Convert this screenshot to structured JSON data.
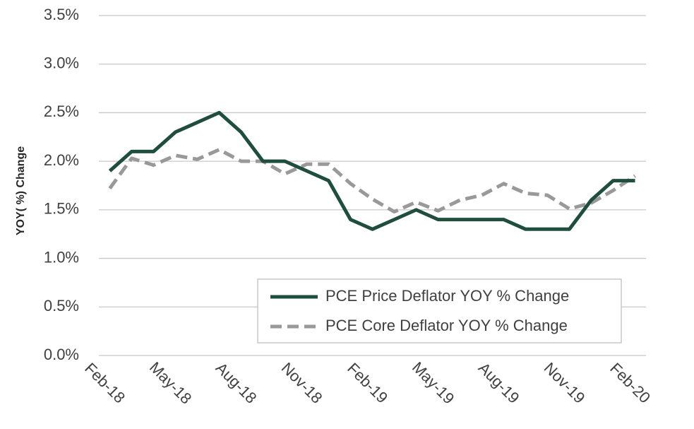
{
  "chart_data": {
    "type": "line",
    "y_label": "YOY( %) Change",
    "categories": [
      "Feb-18",
      null,
      null,
      "May-18",
      null,
      null,
      "Aug-18",
      null,
      null,
      "Nov-18",
      null,
      null,
      "Feb-19",
      null,
      null,
      "May-19",
      null,
      null,
      "Aug-19",
      null,
      null,
      "Nov-19",
      null,
      null,
      "Feb-20"
    ],
    "series": [
      {
        "name": "PCE Price Deflator YOY % Change",
        "color": "#1f4e3d",
        "dash": false,
        "values": [
          1.9,
          2.1,
          2.1,
          2.3,
          2.4,
          2.5,
          2.3,
          2.0,
          2.0,
          1.9,
          1.8,
          1.4,
          1.3,
          1.4,
          1.5,
          1.4,
          1.4,
          1.4,
          1.4,
          1.3,
          1.3,
          1.3,
          1.6,
          1.8,
          1.8
        ]
      },
      {
        "name": "PCE Core Deflator YOY % Change",
        "color": "#999999",
        "dash": true,
        "values": [
          1.72,
          2.03,
          1.96,
          2.06,
          2.02,
          2.12,
          2.0,
          2.0,
          1.87,
          1.97,
          1.97,
          1.77,
          1.61,
          1.48,
          1.58,
          1.49,
          1.6,
          1.65,
          1.77,
          1.67,
          1.65,
          1.51,
          1.57,
          1.7,
          1.85
        ]
      }
    ],
    "ylim": [
      0,
      3.5
    ],
    "yticks": [
      {
        "value": 0,
        "label": "0.0%"
      },
      {
        "value": 0.5,
        "label": "0.5%"
      },
      {
        "value": 1,
        "label": "1.0%"
      },
      {
        "value": 1.5,
        "label": "1.5%"
      },
      {
        "value": 2,
        "label": "2.0%"
      },
      {
        "value": 2.5,
        "label": "2.5%"
      },
      {
        "value": 3,
        "label": "3.0%"
      },
      {
        "value": 3.5,
        "label": "3.5%"
      }
    ],
    "grid": true,
    "legend": "lower right"
  }
}
